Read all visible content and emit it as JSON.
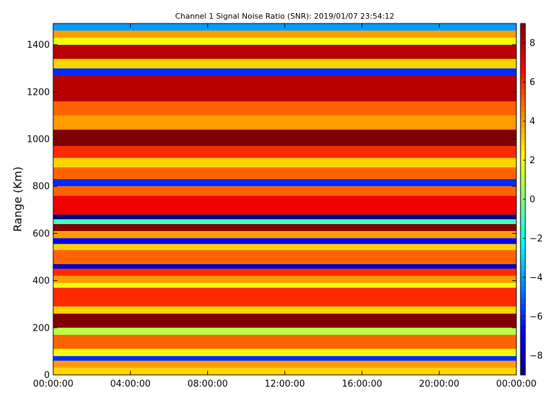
{
  "chart_data": {
    "type": "heatmap",
    "title": "Channel 1 Signal Noise Ratio (SNR): 2019/01/07 23:54:12",
    "xlabel": "",
    "ylabel": "Range (Km)",
    "x_ticks": [
      "00:00:00",
      "04:00:00",
      "08:00:00",
      "12:00:00",
      "16:00:00",
      "20:00:00",
      "00:00:00"
    ],
    "x_range_hours": [
      0,
      24
    ],
    "y_ticks": [
      0,
      200,
      400,
      600,
      800,
      1000,
      1200,
      1400
    ],
    "ylim": [
      0,
      1490
    ],
    "colorbar": {
      "colormap": "jet",
      "range": [
        -9,
        9
      ],
      "ticks": [
        -8,
        -6,
        -4,
        -2,
        0,
        2,
        4,
        6,
        8
      ],
      "tick_labels": [
        "−8",
        "−6",
        "−4",
        "−2",
        "0",
        "2",
        "4",
        "6",
        "8"
      ]
    },
    "grid": false,
    "bands_km": [
      {
        "range": [
          0,
          30
        ],
        "snr": 3
      },
      {
        "range": [
          30,
          60
        ],
        "snr": 4
      },
      {
        "range": [
          60,
          80
        ],
        "snr": -6
      },
      {
        "range": [
          80,
          110
        ],
        "snr": 2
      },
      {
        "range": [
          110,
          170
        ],
        "snr": 5
      },
      {
        "range": [
          170,
          200
        ],
        "snr": 1
      },
      {
        "range": [
          200,
          260
        ],
        "snr": 9
      },
      {
        "range": [
          260,
          290
        ],
        "snr": 3
      },
      {
        "range": [
          290,
          370
        ],
        "snr": 6
      },
      {
        "range": [
          370,
          390
        ],
        "snr": 2
      },
      {
        "range": [
          390,
          420
        ],
        "snr": 4
      },
      {
        "range": [
          420,
          450
        ],
        "snr": 6
      },
      {
        "range": [
          450,
          470
        ],
        "snr": -8
      },
      {
        "range": [
          470,
          530
        ],
        "snr": 5
      },
      {
        "range": [
          530,
          555
        ],
        "snr": 3
      },
      {
        "range": [
          555,
          580
        ],
        "snr": -7
      },
      {
        "range": [
          580,
          610
        ],
        "snr": 4
      },
      {
        "range": [
          610,
          640
        ],
        "snr": 9
      },
      {
        "range": [
          640,
          660
        ],
        "snr": -1
      },
      {
        "range": [
          660,
          680
        ],
        "snr": -9
      },
      {
        "range": [
          680,
          760
        ],
        "snr": 7
      },
      {
        "range": [
          760,
          800
        ],
        "snr": 5
      },
      {
        "range": [
          800,
          830
        ],
        "snr": -6
      },
      {
        "range": [
          830,
          880
        ],
        "snr": 5
      },
      {
        "range": [
          880,
          920
        ],
        "snr": 3
      },
      {
        "range": [
          920,
          970
        ],
        "snr": 6
      },
      {
        "range": [
          970,
          1040
        ],
        "snr": 9
      },
      {
        "range": [
          1040,
          1100
        ],
        "snr": 4
      },
      {
        "range": [
          1100,
          1160
        ],
        "snr": 5
      },
      {
        "range": [
          1160,
          1270
        ],
        "snr": 8
      },
      {
        "range": [
          1270,
          1300
        ],
        "snr": -6
      },
      {
        "range": [
          1300,
          1340
        ],
        "snr": 3
      },
      {
        "range": [
          1340,
          1400
        ],
        "snr": 8
      },
      {
        "range": [
          1400,
          1430
        ],
        "snr": 2
      },
      {
        "range": [
          1430,
          1460
        ],
        "snr": 4
      },
      {
        "range": [
          1460,
          1490
        ],
        "snr": -4
      }
    ]
  }
}
